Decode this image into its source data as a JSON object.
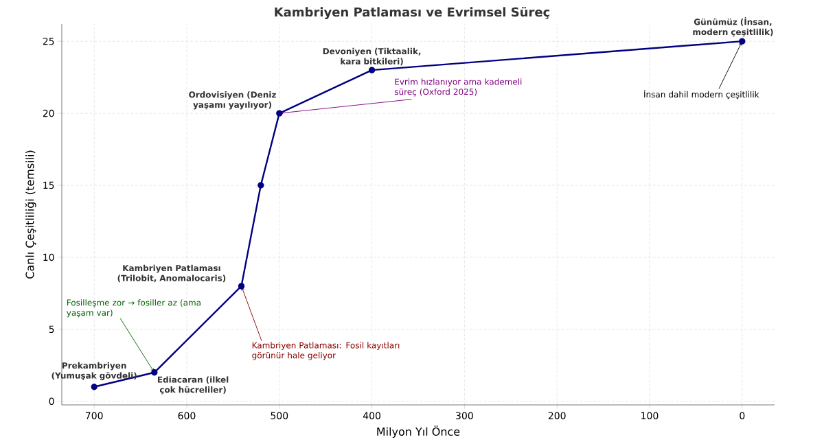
{
  "chart_data": {
    "type": "line",
    "title": "Kambriyen Patlaması ve Evrimsel Süreç",
    "xlabel": "Milyon Yıl Önce",
    "ylabel": "Canlı Çeşitliliği (temsili)",
    "x": [
      700,
      635,
      541,
      520,
      500,
      400,
      0
    ],
    "series": [
      {
        "color": "#000080",
        "values": [
          1,
          2,
          8,
          15,
          20,
          23,
          25
        ],
        "value_labels": [
          "Prekambriyen (Yumuşak gövdeli)",
          "Ediacaran (ilkel çok hücreliler)",
          "Kambriyen Patlaması (Trilobit, Anomalocaris)",
          null,
          "Ordovisiyen (Deniz yaşamı yayılıyor)",
          "Devoniyen (Tiktaalik, kara bitkileri)",
          "Günümüz (İnsan, modern çeşitlilik)"
        ]
      }
    ],
    "xlim": [
      735,
      -35
    ],
    "ylim": [
      -0.25,
      26.2
    ],
    "xticks": [
      700,
      600,
      500,
      400,
      300,
      200,
      100,
      0
    ],
    "yticks": [
      0,
      5,
      10,
      15,
      20,
      25
    ],
    "grid": true,
    "marker": "circle",
    "line_style": "solid",
    "annotations": [
      {
        "text": "Fosilleşme zor → fosiller az (ama yaşam var)",
        "x": 635,
        "y": 2
      },
      {
        "text": "Kambriyen Patlaması: Fosil kayıtları görünür hale geliyor",
        "x": 541,
        "y": 8
      },
      {
        "text": "Evrim hızlanıyor ama kademeli süreç (Oxford 2025)",
        "x": 500,
        "y": 20
      },
      {
        "text": "İnsan dahil modern çeşitlilik",
        "x": 0,
        "y": 25
      }
    ]
  }
}
